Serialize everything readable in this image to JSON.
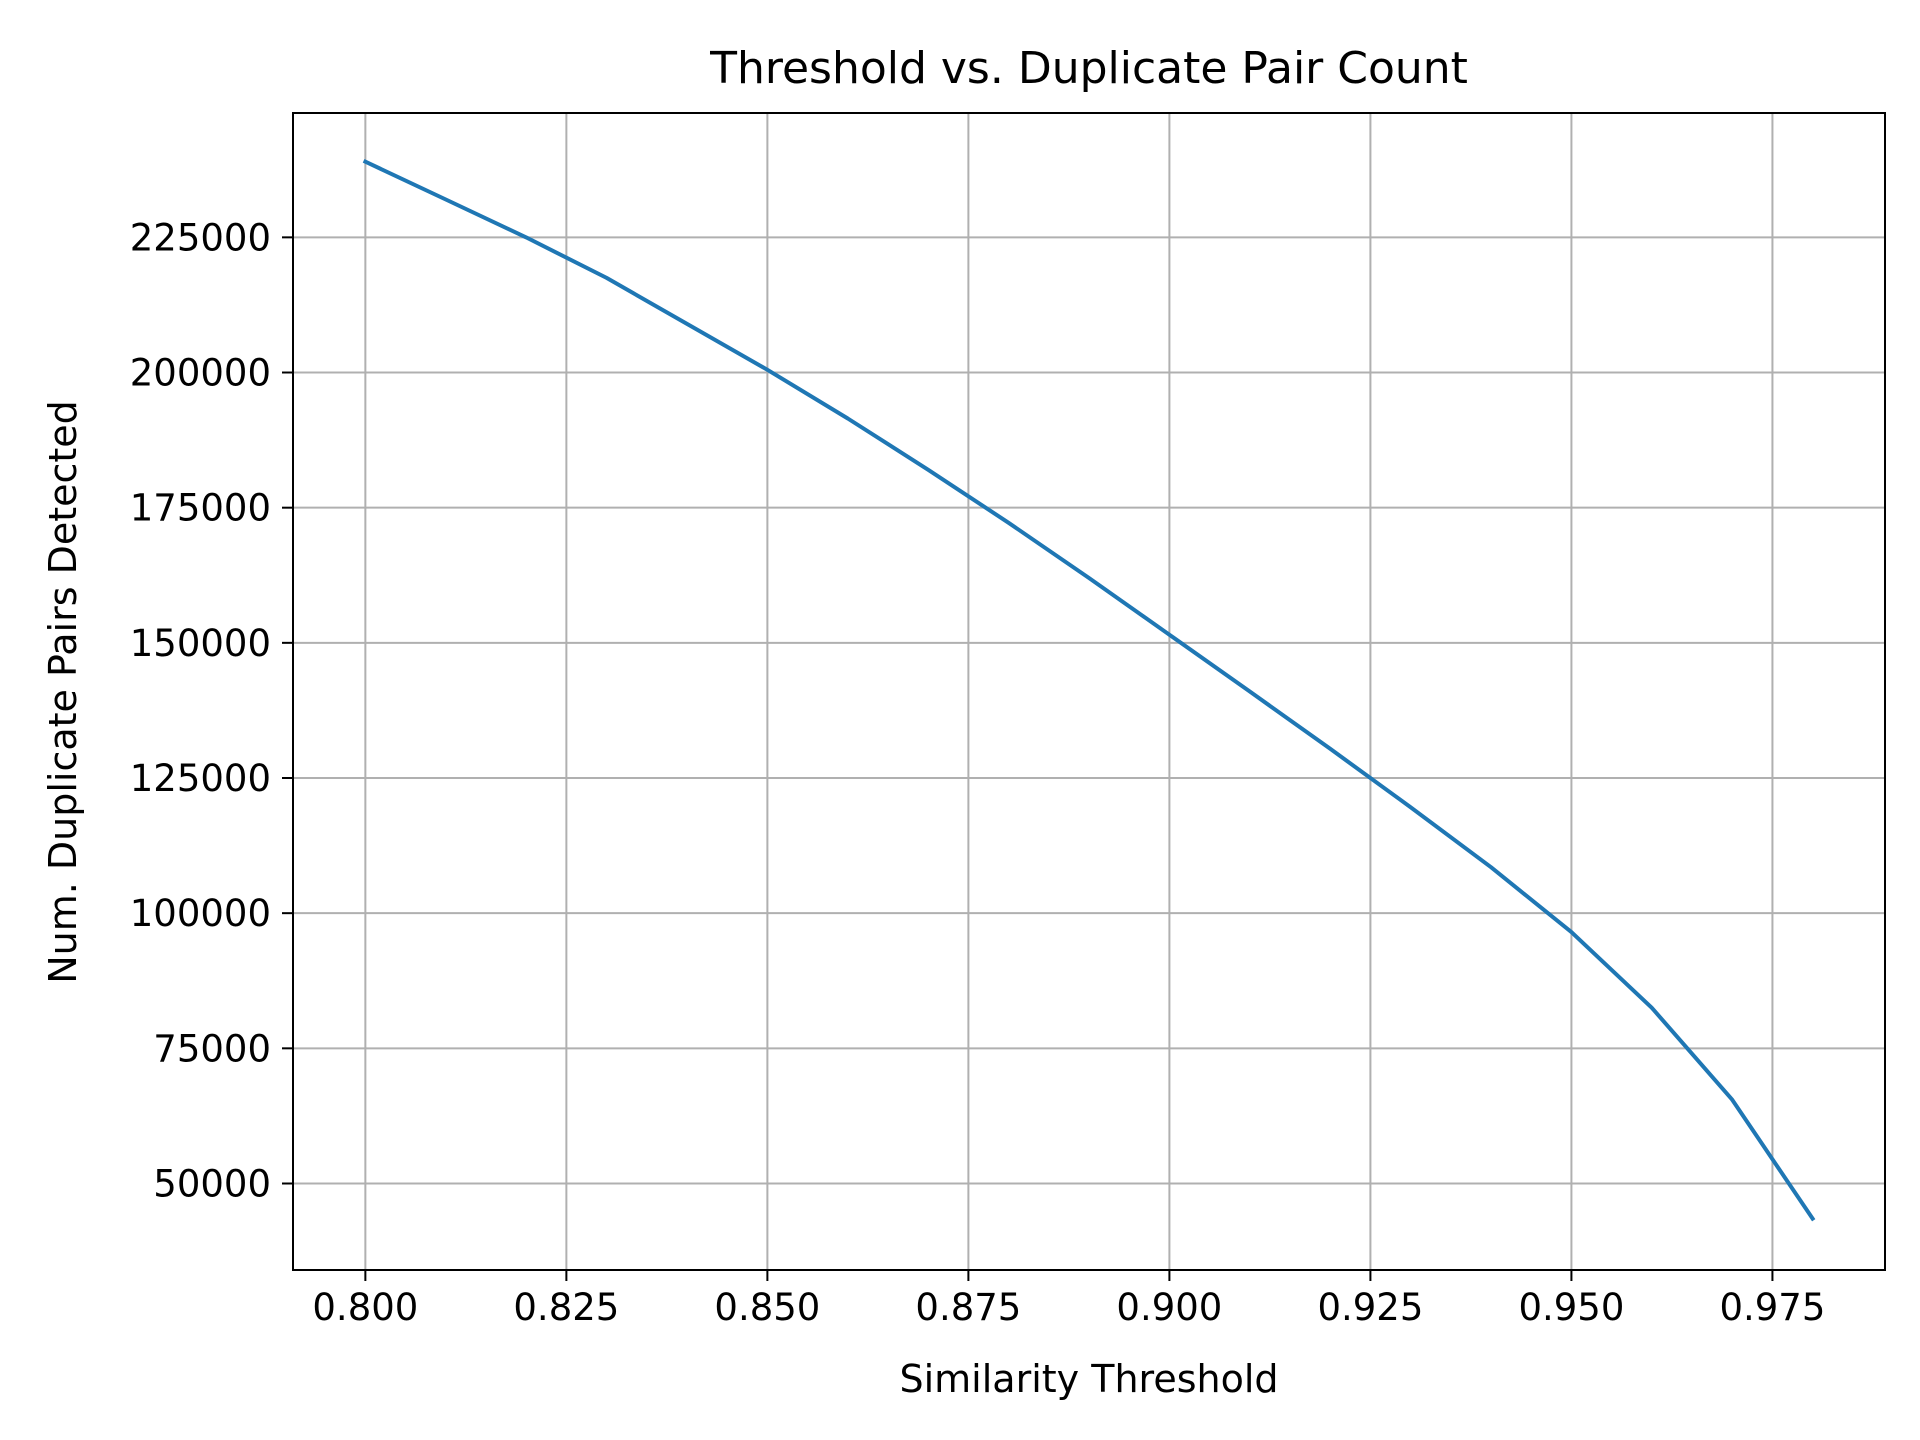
{
  "chart_data": {
    "type": "line",
    "title": "Threshold vs. Duplicate Pair Count",
    "xlabel": "Similarity Threshold",
    "ylabel": "Num. Duplicate Pairs Detected",
    "xlim": [
      0.791,
      0.989
    ],
    "ylim": [
      34000,
      248000
    ],
    "x_ticks": [
      0.8,
      0.825,
      0.85,
      0.875,
      0.9,
      0.925,
      0.95,
      0.975
    ],
    "x_tick_labels": [
      "0.800",
      "0.825",
      "0.850",
      "0.875",
      "0.900",
      "0.925",
      "0.950",
      "0.975"
    ],
    "y_ticks": [
      50000,
      75000,
      100000,
      125000,
      150000,
      175000,
      200000,
      225000
    ],
    "y_tick_labels": [
      "50000",
      "75000",
      "100000",
      "125000",
      "150000",
      "175000",
      "200000",
      "225000"
    ],
    "grid": true,
    "legend": false,
    "series": [
      {
        "color": "#1f77b4",
        "x": [
          0.8,
          0.81,
          0.82,
          0.83,
          0.84,
          0.85,
          0.86,
          0.87,
          0.88,
          0.89,
          0.9,
          0.91,
          0.92,
          0.93,
          0.94,
          0.95,
          0.96,
          0.97,
          0.98
        ],
        "y": [
          239000,
          232000,
          225000,
          217500,
          209000,
          200500,
          191500,
          182000,
          172200,
          162000,
          151500,
          141000,
          130400,
          119600,
          108500,
          96500,
          82500,
          65500,
          43500
        ]
      }
    ]
  }
}
